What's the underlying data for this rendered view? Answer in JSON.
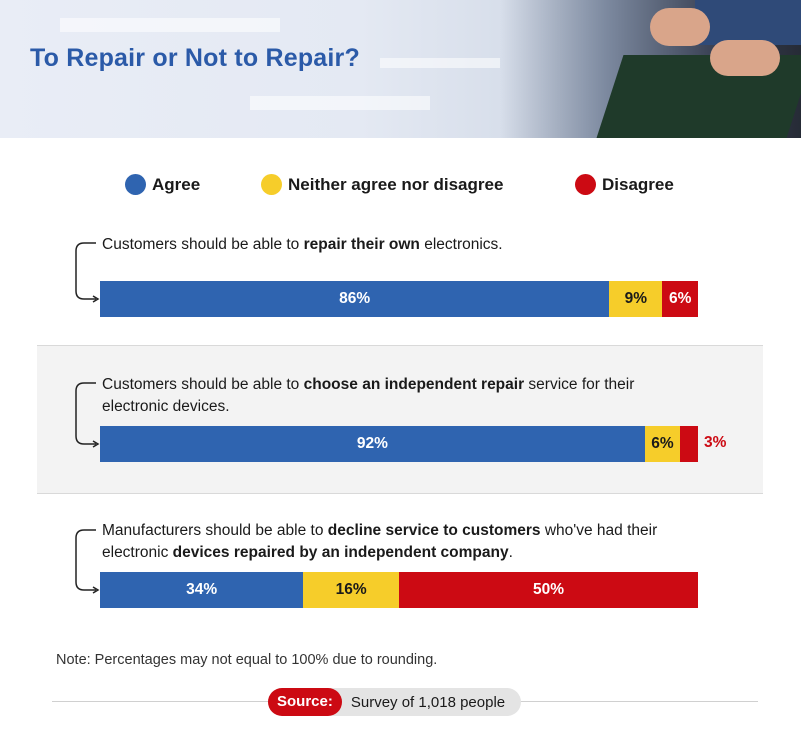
{
  "header": {
    "title": "To Repair or Not to Repair?"
  },
  "legend": [
    {
      "label": "Agree",
      "color": "#2f64b0"
    },
    {
      "label": "Neither agree nor disagree",
      "color": "#f6cd2a"
    },
    {
      "label": "Disagree",
      "color": "#cc0a13"
    }
  ],
  "statements": [
    {
      "pre": "Customers should be able to ",
      "bold": "repair their own",
      "post": " electronics.",
      "bold2": "",
      "post2": ""
    },
    {
      "pre": "Customers should be able to ",
      "bold": "choose an independent repair",
      "post": " service for their electronic devices.",
      "bold2": "",
      "post2": ""
    },
    {
      "pre": "Manufacturers should be able to ",
      "bold": "decline service to customers",
      "post": " who've had their electronic ",
      "bold2": "devices repaired by an independent company",
      "post2": "."
    }
  ],
  "chart_data": {
    "type": "bar",
    "orientation": "horizontal",
    "stacked": true,
    "categories": [
      "Customers should be able to repair their own electronics.",
      "Customers should be able to choose an independent repair service for their electronic devices.",
      "Manufacturers should be able to decline service to customers who've had their electronic devices repaired by an independent company."
    ],
    "series": [
      {
        "name": "Agree",
        "values": [
          86,
          92,
          34
        ],
        "labels": [
          "86%",
          "92%",
          "34%"
        ],
        "color": "#2f64b0"
      },
      {
        "name": "Neither agree nor disagree",
        "values": [
          9,
          6,
          16
        ],
        "labels": [
          "9%",
          "6%",
          "16%"
        ],
        "color": "#f6cd2a"
      },
      {
        "name": "Disagree",
        "values": [
          6,
          3,
          50
        ],
        "labels": [
          "6%",
          "3%",
          "50%"
        ],
        "color": "#cc0a13"
      }
    ],
    "legend_position": "top",
    "grid": false
  },
  "footer": {
    "note": "Note: Percentages may not equal to 100% due to rounding.",
    "source_label": "Source:",
    "source_text": "Survey of 1,018 people"
  }
}
